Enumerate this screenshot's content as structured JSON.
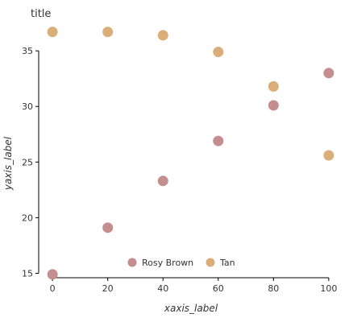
{
  "colors": {
    "rosy_brown": "#C48E8E",
    "tan": "#D9AE78",
    "axis": "#000000"
  },
  "chart_data": {
    "type": "scatter",
    "title": "title",
    "xlabel": "xaxis_label",
    "ylabel": "yaxis_label",
    "xlim": [
      -5,
      105
    ],
    "ylim": [
      14.6,
      37.4
    ],
    "xticks": [
      0,
      20,
      40,
      60,
      80,
      100
    ],
    "yticks": [
      15,
      20,
      25,
      30,
      35
    ],
    "grid": false,
    "legend_position": "bottom",
    "series": [
      {
        "name": "Rosy Brown",
        "color": "#C48E8E",
        "x": [
          0,
          20,
          40,
          60,
          80,
          100
        ],
        "y": [
          14.9,
          19.1,
          23.3,
          26.9,
          30.1,
          33.0
        ]
      },
      {
        "name": "Tan",
        "color": "#D9AE78",
        "x": [
          0,
          20,
          40,
          60,
          80,
          100
        ],
        "y": [
          36.7,
          36.7,
          36.4,
          34.9,
          31.8,
          25.6
        ]
      }
    ]
  }
}
